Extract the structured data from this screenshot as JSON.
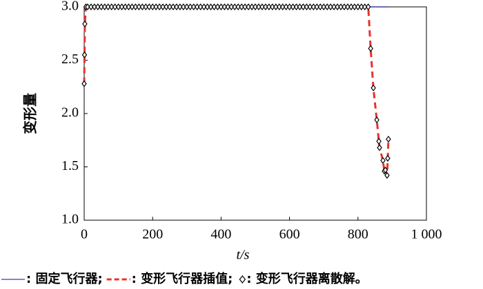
{
  "chart_data": {
    "type": "line",
    "xlabel": "t/s",
    "ylabel": "变形量",
    "x": [
      0,
      1,
      2,
      5,
      10,
      20,
      30,
      40,
      50,
      60,
      70,
      80,
      90,
      100,
      110,
      120,
      130,
      140,
      150,
      160,
      170,
      180,
      190,
      200,
      210,
      220,
      230,
      240,
      250,
      260,
      270,
      280,
      290,
      300,
      310,
      320,
      330,
      340,
      350,
      360,
      370,
      380,
      390,
      400,
      410,
      420,
      430,
      440,
      450,
      460,
      470,
      480,
      490,
      500,
      510,
      520,
      530,
      540,
      550,
      560,
      570,
      580,
      590,
      600,
      610,
      620,
      630,
      640,
      650,
      660,
      670,
      680,
      690,
      700,
      710,
      720,
      730,
      740,
      750,
      760,
      770,
      780,
      790,
      800,
      810,
      820,
      830,
      837,
      845,
      855,
      861,
      863,
      873,
      877,
      880,
      885,
      887,
      889
    ],
    "series": [
      {
        "name": ": 固定飞行器;",
        "color": "#3a3aa8",
        "style": "solid",
        "values": [
          3,
          3,
          3,
          3,
          3,
          3,
          3,
          3,
          3,
          3,
          3,
          3,
          3,
          3,
          3,
          3,
          3,
          3,
          3,
          3,
          3,
          3,
          3,
          3,
          3,
          3,
          3,
          3,
          3,
          3,
          3,
          3,
          3,
          3,
          3,
          3,
          3,
          3,
          3,
          3,
          3,
          3,
          3,
          3,
          3,
          3,
          3,
          3,
          3,
          3,
          3,
          3,
          3,
          3,
          3,
          3,
          3,
          3,
          3,
          3,
          3,
          3,
          3,
          3,
          3,
          3,
          3,
          3,
          3,
          3,
          3,
          3,
          3,
          3,
          3,
          3,
          3,
          3,
          3,
          3,
          3,
          3,
          3,
          3,
          3,
          3,
          3,
          3,
          3,
          3,
          3,
          3,
          3,
          3,
          3,
          3,
          3,
          3
        ]
      },
      {
        "name": ": 变形飞行器插值;",
        "color": "#e8302a",
        "style": "dashed",
        "values": [
          2.28,
          2.55,
          2.84,
          3,
          3,
          3,
          3,
          3,
          3,
          3,
          3,
          3,
          3,
          3,
          3,
          3,
          3,
          3,
          3,
          3,
          3,
          3,
          3,
          3,
          3,
          3,
          3,
          3,
          3,
          3,
          3,
          3,
          3,
          3,
          3,
          3,
          3,
          3,
          3,
          3,
          3,
          3,
          3,
          3,
          3,
          3,
          3,
          3,
          3,
          3,
          3,
          3,
          3,
          3,
          3,
          3,
          3,
          3,
          3,
          3,
          3,
          3,
          3,
          3,
          3,
          3,
          3,
          3,
          3,
          3,
          3,
          3,
          3,
          3,
          3,
          3,
          3,
          3,
          3,
          3,
          3,
          3,
          3,
          3,
          3,
          3,
          3,
          2.61,
          2.24,
          1.94,
          1.74,
          1.68,
          1.56,
          1.46,
          1.47,
          1.42,
          1.58,
          1.76
        ]
      },
      {
        "name": ": 变形飞行器离散解。",
        "color": "#000000",
        "style": "markers",
        "values": [
          2.28,
          2.55,
          2.84,
          3,
          3,
          3,
          3,
          3,
          3,
          3,
          3,
          3,
          3,
          3,
          3,
          3,
          3,
          3,
          3,
          3,
          3,
          3,
          3,
          3,
          3,
          3,
          3,
          3,
          3,
          3,
          3,
          3,
          3,
          3,
          3,
          3,
          3,
          3,
          3,
          3,
          3,
          3,
          3,
          3,
          3,
          3,
          3,
          3,
          3,
          3,
          3,
          3,
          3,
          3,
          3,
          3,
          3,
          3,
          3,
          3,
          3,
          3,
          3,
          3,
          3,
          3,
          3,
          3,
          3,
          3,
          3,
          3,
          3,
          3,
          3,
          3,
          3,
          3,
          3,
          3,
          3,
          3,
          3,
          3,
          3,
          3,
          3,
          2.61,
          2.24,
          1.94,
          1.74,
          1.68,
          1.56,
          1.46,
          1.47,
          1.42,
          1.58,
          1.76
        ]
      }
    ],
    "xlim": [
      0,
      1000
    ],
    "xticks": [
      0,
      200,
      400,
      600,
      800,
      {
        "value": 1000,
        "label": "1 000"
      }
    ],
    "ylim": [
      1,
      3
    ],
    "yticks": [
      {
        "value": 1,
        "label": "1.0"
      },
      1.5,
      {
        "value": 2,
        "label": "2.0"
      },
      2.5,
      {
        "value": 3,
        "label": "3.0"
      }
    ]
  }
}
